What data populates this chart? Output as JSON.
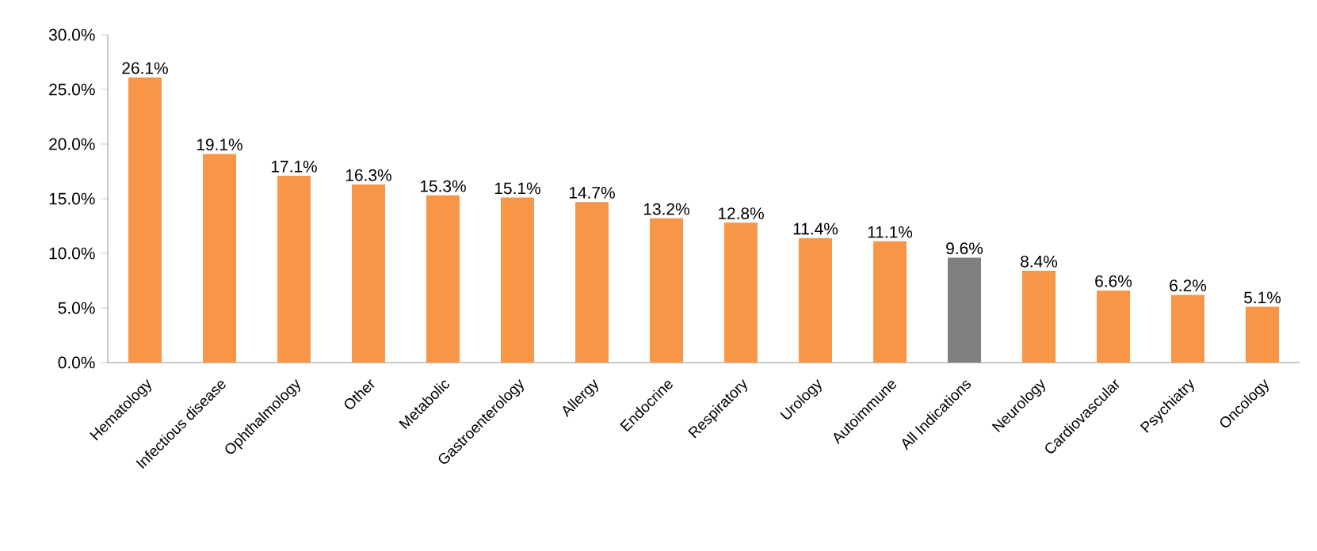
{
  "chart_data": {
    "type": "bar",
    "categories": [
      "Hematology",
      "Infectious disease",
      "Ophthalmology",
      "Other",
      "Metabolic",
      "Gastroenterology",
      "Allergy",
      "Endocrine",
      "Respiratory",
      "Urology",
      "Autoimmune",
      "All Indications",
      "Neurology",
      "Cardiovascular",
      "Psychiatry",
      "Oncology"
    ],
    "values": [
      26.1,
      19.1,
      17.1,
      16.3,
      15.3,
      15.1,
      14.7,
      13.2,
      12.8,
      11.4,
      11.1,
      9.6,
      8.4,
      6.6,
      6.2,
      5.1
    ],
    "value_labels": [
      "26.1%",
      "19.1%",
      "17.1%",
      "16.3%",
      "15.3%",
      "15.1%",
      "14.7%",
      "13.2%",
      "12.8%",
      "11.4%",
      "11.1%",
      "9.6%",
      "8.4%",
      "6.6%",
      "6.2%",
      "5.1%"
    ],
    "colors": [
      "#f79646",
      "#f79646",
      "#f79646",
      "#f79646",
      "#f79646",
      "#f79646",
      "#f79646",
      "#f79646",
      "#f79646",
      "#f79646",
      "#f79646",
      "#7f7f7f",
      "#f79646",
      "#f79646",
      "#f79646",
      "#f79646"
    ],
    "ylim": [
      0,
      30
    ],
    "yticks": [
      {
        "value": 0,
        "label": "0.0%"
      },
      {
        "value": 5,
        "label": "5.0%"
      },
      {
        "value": 10,
        "label": "10.0%"
      },
      {
        "value": 15,
        "label": "15.0%"
      },
      {
        "value": 20,
        "label": "20.0%"
      },
      {
        "value": 25,
        "label": "25.0%"
      },
      {
        "value": 30,
        "label": "30.0%"
      }
    ],
    "grid": false
  }
}
